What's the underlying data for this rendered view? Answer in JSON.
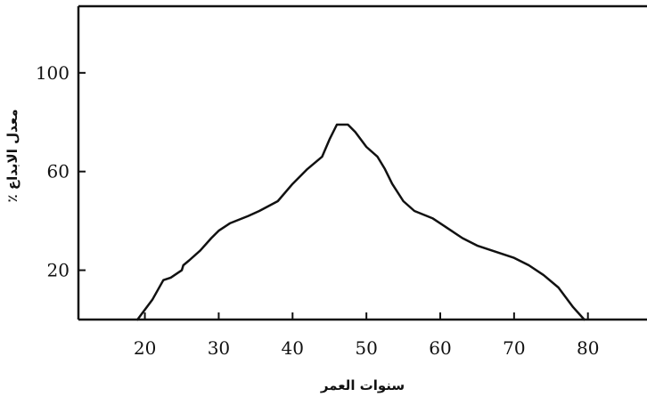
{
  "chart_data": {
    "type": "line",
    "title": "",
    "xlabel": "سنوات العمر",
    "ylabel": "معدل الابداع ٪",
    "xlim": [
      11,
      88
    ],
    "ylim": [
      0,
      127
    ],
    "x_ticks": [
      "20",
      "30",
      "40",
      "50",
      "60",
      "70",
      "80"
    ],
    "y_ticks": [
      "20",
      "60",
      "100"
    ],
    "grid": false,
    "series": [
      {
        "points": [
          [
            19,
            0
          ],
          [
            19.5,
            2
          ],
          [
            21,
            8
          ],
          [
            22.5,
            16
          ],
          [
            23.5,
            17
          ],
          [
            25,
            20
          ],
          [
            25.2,
            22
          ],
          [
            26,
            24
          ],
          [
            27.5,
            28
          ],
          [
            29,
            33
          ],
          [
            30,
            36
          ],
          [
            31.5,
            39
          ],
          [
            34,
            42
          ],
          [
            35.5,
            44
          ],
          [
            38,
            48
          ],
          [
            40,
            55
          ],
          [
            42,
            61
          ],
          [
            44,
            66
          ],
          [
            45,
            73
          ],
          [
            46,
            79
          ],
          [
            47.5,
            79
          ],
          [
            48.5,
            76
          ],
          [
            50,
            70
          ],
          [
            51.5,
            66
          ],
          [
            52.5,
            61
          ],
          [
            53.5,
            55
          ],
          [
            55,
            48
          ],
          [
            56.5,
            44
          ],
          [
            59,
            41
          ],
          [
            61,
            37
          ],
          [
            63,
            33
          ],
          [
            65,
            30
          ],
          [
            67,
            28
          ],
          [
            69,
            26
          ],
          [
            70,
            25
          ],
          [
            72,
            22
          ],
          [
            74,
            18
          ],
          [
            76,
            13
          ],
          [
            77,
            9
          ],
          [
            78,
            5
          ],
          [
            79.5,
            0
          ]
        ]
      }
    ]
  },
  "axes": {
    "x_label": "سنوات العمر",
    "y_label": "معدل الابداع ٪"
  },
  "colors": {
    "line": "#111111",
    "axis": "#111111",
    "background": "#ffffff"
  }
}
